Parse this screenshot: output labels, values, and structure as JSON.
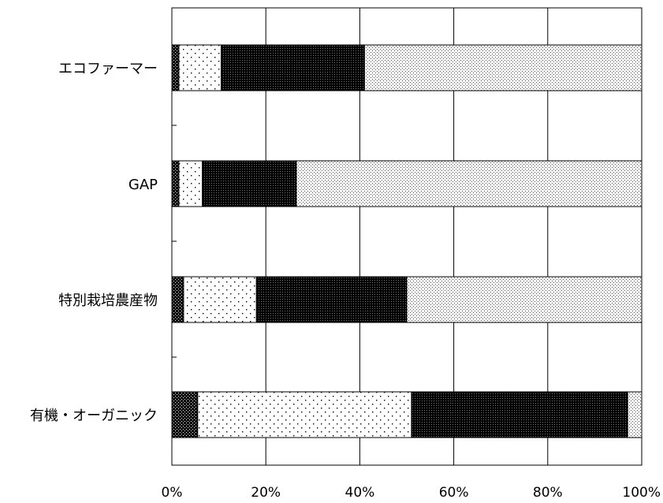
{
  "chart_data": {
    "type": "bar",
    "orientation": "horizontal",
    "stacked": true,
    "normalized": true,
    "categories": [
      "エコファーマー",
      "GAP",
      "特別栽培農産物",
      "有機・オーガニック"
    ],
    "series": [
      {
        "values": [
          1.5,
          1.5,
          2.5,
          5.5
        ],
        "pattern": "dense-dots-dark"
      },
      {
        "values": [
          9.0,
          5.0,
          15.5,
          45.5
        ],
        "pattern": "sparse-dots-light"
      },
      {
        "values": [
          30.5,
          20.0,
          32.0,
          46.0
        ],
        "pattern": "dense-dots-black"
      },
      {
        "values": [
          59.0,
          73.5,
          50.0,
          3.0
        ],
        "pattern": "fine-dots-grey"
      }
    ],
    "x_ticks": [
      "0%",
      "20%",
      "40%",
      "60%",
      "80%",
      "100%"
    ],
    "xlim": [
      0,
      100
    ],
    "grid": "vertical"
  }
}
